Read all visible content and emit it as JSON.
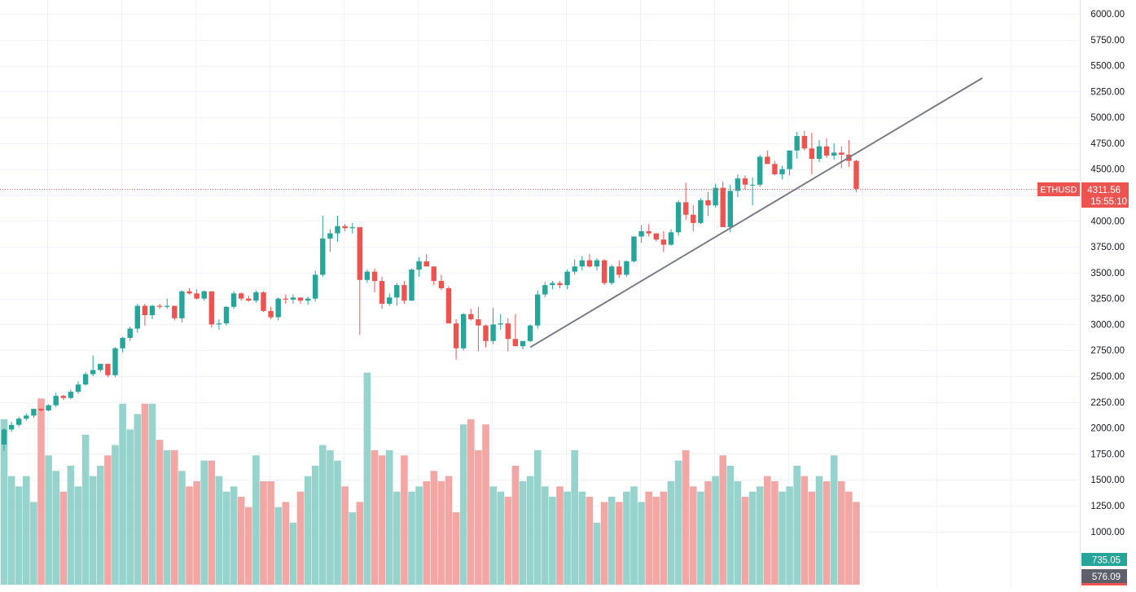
{
  "symbol": "ETHUSD",
  "last_price": "4311.56",
  "countdown": "15:55:10",
  "volume_badges": [
    "735.05",
    "576.09"
  ],
  "colors": {
    "up": "#26a69a",
    "down": "#ef5350",
    "vol_up": "#95d3cc",
    "vol_down": "#f3a7a5",
    "grid": "#f0f3fa",
    "axis_text": "#131722",
    "trendline": "#787b86",
    "badge_gray": "#5d606b"
  },
  "chart_data": {
    "type": "candlestick",
    "price_axis": {
      "ticks": [
        "6000.00",
        "5750.00",
        "5500.00",
        "5250.00",
        "5000.00",
        "4750.00",
        "4500.00",
        "4250.00",
        "4000.00",
        "3750.00",
        "3500.00",
        "3250.00",
        "3000.00",
        "2750.00",
        "2500.00",
        "2250.00",
        "2000.00",
        "1750.00",
        "1500.00",
        "1250.00",
        "1000.00"
      ],
      "range": [
        1000,
        6000
      ]
    },
    "current_price": 4311.56,
    "trendline": {
      "from": {
        "bar": 71,
        "price": 2780
      },
      "to": {
        "bar": 132,
        "price": 5380
      }
    },
    "ohlcv": [
      [
        1840,
        2000,
        1780,
        1985,
        1600
      ],
      [
        1985,
        2060,
        1960,
        2030,
        1050
      ],
      [
        2030,
        2110,
        2010,
        2090,
        950
      ],
      [
        2090,
        2140,
        2070,
        2120,
        1050
      ],
      [
        2120,
        2180,
        2100,
        2185,
        800
      ],
      [
        2185,
        2190,
        2160,
        2170,
        1800
      ],
      [
        2170,
        2230,
        2160,
        2220,
        1250
      ],
      [
        2220,
        2340,
        2200,
        2310,
        1100
      ],
      [
        2310,
        2320,
        2270,
        2290,
        900
      ],
      [
        2290,
        2370,
        2280,
        2350,
        1150
      ],
      [
        2350,
        2450,
        2330,
        2420,
        950
      ],
      [
        2420,
        2540,
        2410,
        2520,
        1450
      ],
      [
        2520,
        2700,
        2500,
        2560,
        1050
      ],
      [
        2560,
        2620,
        2540,
        2620,
        1150
      ],
      [
        2620,
        2590,
        2490,
        2510,
        1250
      ],
      [
        2510,
        2780,
        2490,
        2770,
        1350
      ],
      [
        2770,
        2880,
        2730,
        2870,
        1750
      ],
      [
        2870,
        2980,
        2840,
        2960,
        1500
      ],
      [
        2960,
        3200,
        2920,
        3180,
        1650
      ],
      [
        3180,
        3200,
        2990,
        3090,
        1750
      ],
      [
        3090,
        3190,
        3050,
        3180,
        1750
      ],
      [
        3180,
        3200,
        3150,
        3170,
        1400
      ],
      [
        3170,
        3250,
        3150,
        3180,
        1300
      ],
      [
        3180,
        3150,
        3040,
        3060,
        1300
      ],
      [
        3060,
        3330,
        3020,
        3320,
        1100
      ],
      [
        3320,
        3350,
        3290,
        3300,
        950
      ],
      [
        3300,
        3340,
        3240,
        3250,
        1000
      ],
      [
        3250,
        3330,
        3230,
        3320,
        1200
      ],
      [
        3320,
        3150,
        2970,
        3000,
        1200
      ],
      [
        3000,
        3050,
        2950,
        3010,
        1050
      ],
      [
        3010,
        3180,
        2990,
        3170,
        900
      ],
      [
        3170,
        3320,
        3150,
        3300,
        950
      ],
      [
        3300,
        3310,
        3230,
        3250,
        850
      ],
      [
        3250,
        3280,
        3220,
        3230,
        750
      ],
      [
        3230,
        3330,
        3210,
        3310,
        1250
      ],
      [
        3310,
        3320,
        3120,
        3130,
        1000
      ],
      [
        3130,
        3170,
        3050,
        3070,
        1000
      ],
      [
        3070,
        3260,
        3040,
        3250,
        750
      ],
      [
        3250,
        3290,
        3200,
        3240,
        800
      ],
      [
        3240,
        3290,
        3200,
        3260,
        600
      ],
      [
        3260,
        3260,
        3200,
        3230,
        900
      ],
      [
        3230,
        3270,
        3190,
        3250,
        1050
      ],
      [
        3250,
        3520,
        3220,
        3480,
        1150
      ],
      [
        3480,
        4050,
        3460,
        3830,
        1350
      ],
      [
        3830,
        3920,
        3700,
        3880,
        1300
      ],
      [
        3880,
        4050,
        3800,
        3950,
        1200
      ],
      [
        3950,
        3970,
        3900,
        3930,
        950
      ],
      [
        3930,
        3980,
        3880,
        3940,
        700
      ],
      [
        3940,
        3440,
        2900,
        3430,
        800
      ],
      [
        3430,
        3530,
        3400,
        3510,
        2050
      ],
      [
        3510,
        3540,
        3310,
        3420,
        1300
      ],
      [
        3420,
        3460,
        3150,
        3200,
        1250
      ],
      [
        3200,
        3300,
        3180,
        3260,
        1300
      ],
      [
        3260,
        3400,
        3180,
        3380,
        900
      ],
      [
        3380,
        3420,
        3200,
        3230,
        1250
      ],
      [
        3230,
        3540,
        3230,
        3530,
        900
      ],
      [
        3530,
        3650,
        3460,
        3610,
        950
      ],
      [
        3610,
        3680,
        3590,
        3560,
        1000
      ],
      [
        3560,
        3460,
        3380,
        3420,
        1100
      ],
      [
        3420,
        3480,
        3330,
        3350,
        1000
      ],
      [
        3350,
        3370,
        3150,
        3010,
        1050
      ],
      [
        3010,
        3050,
        2660,
        2770,
        700
      ],
      [
        2770,
        3110,
        2750,
        3100,
        1550
      ],
      [
        3100,
        3150,
        3040,
        3050,
        1600
      ],
      [
        3050,
        3170,
        2740,
        2990,
        1300
      ],
      [
        2990,
        3000,
        2780,
        2840,
        1550
      ],
      [
        2840,
        3160,
        2810,
        3000,
        950
      ],
      [
        3000,
        3100,
        2950,
        3010,
        900
      ],
      [
        3010,
        3060,
        2740,
        2860,
        850
      ],
      [
        2860,
        3100,
        2820,
        2790,
        1150
      ],
      [
        2790,
        2840,
        2760,
        2840,
        1000
      ],
      [
        2840,
        3000,
        2830,
        2990,
        1050
      ],
      [
        2990,
        3330,
        2960,
        3290,
        1300
      ],
      [
        3290,
        3410,
        3260,
        3380,
        950
      ],
      [
        3380,
        3420,
        3340,
        3400,
        850
      ],
      [
        3400,
        3420,
        3350,
        3380,
        950
      ],
      [
        3380,
        3530,
        3340,
        3510,
        900
      ],
      [
        3510,
        3630,
        3480,
        3560,
        1300
      ],
      [
        3560,
        3660,
        3520,
        3620,
        900
      ],
      [
        3620,
        3680,
        3550,
        3560,
        850
      ],
      [
        3560,
        3640,
        3520,
        3620,
        600
      ],
      [
        3620,
        3630,
        3380,
        3400,
        800
      ],
      [
        3400,
        3580,
        3380,
        3560,
        850
      ],
      [
        3560,
        3620,
        3450,
        3480,
        800
      ],
      [
        3480,
        3620,
        3460,
        3610,
        900
      ],
      [
        3610,
        3850,
        3600,
        3850,
        950
      ],
      [
        3850,
        3960,
        3790,
        3900,
        800
      ],
      [
        3900,
        3970,
        3850,
        3880,
        900
      ],
      [
        3880,
        3880,
        3800,
        3820,
        850
      ],
      [
        3820,
        3900,
        3700,
        3770,
        900
      ],
      [
        3770,
        3920,
        3760,
        3890,
        1000
      ],
      [
        3890,
        4200,
        3860,
        4180,
        1200
      ],
      [
        4180,
        4370,
        4010,
        4060,
        1300
      ],
      [
        4060,
        4150,
        3900,
        3980,
        950
      ],
      [
        3980,
        4220,
        3970,
        4200,
        900
      ],
      [
        4200,
        4280,
        4050,
        4150,
        1000
      ],
      [
        4150,
        4360,
        4130,
        4320,
        1050
      ],
      [
        4320,
        4380,
        4080,
        3940,
        1250
      ],
      [
        3940,
        4350,
        3890,
        4290,
        1150
      ],
      [
        4290,
        4450,
        4230,
        4410,
        1000
      ],
      [
        4410,
        4440,
        4300,
        4350,
        850
      ],
      [
        4350,
        4420,
        4150,
        4350,
        900
      ],
      [
        4350,
        4640,
        4330,
        4620,
        950
      ],
      [
        4620,
        4680,
        4560,
        4550,
        1050
      ],
      [
        4550,
        4580,
        4440,
        4450,
        1000
      ],
      [
        4450,
        4530,
        4400,
        4500,
        900
      ],
      [
        4500,
        4680,
        4440,
        4680,
        950
      ],
      [
        4680,
        4860,
        4600,
        4820,
        1150
      ],
      [
        4820,
        4870,
        4680,
        4700,
        1050
      ],
      [
        4700,
        4850,
        4450,
        4600,
        900
      ],
      [
        4600,
        4780,
        4570,
        4720,
        1050
      ],
      [
        4720,
        4800,
        4610,
        4630,
        1000
      ],
      [
        4630,
        4750,
        4590,
        4660,
        1250
      ],
      [
        4660,
        4720,
        4510,
        4640,
        1000
      ],
      [
        4640,
        4780,
        4520,
        4580,
        900
      ],
      [
        4580,
        4590,
        4280,
        4310,
        800
      ]
    ]
  }
}
